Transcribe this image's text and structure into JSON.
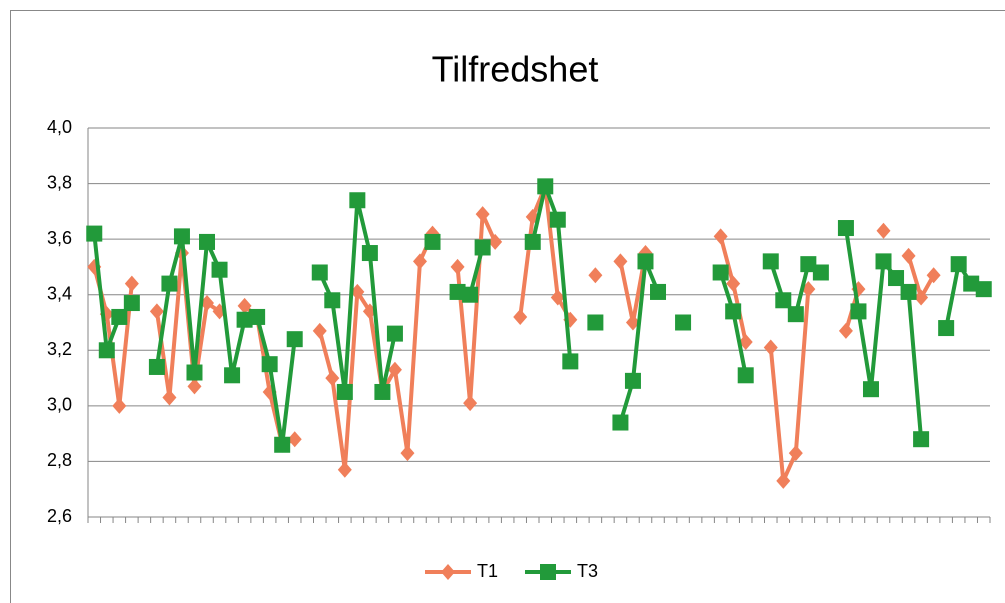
{
  "chart_data": {
    "type": "line",
    "title": "Tilfredshet",
    "categories": [
      null,
      null,
      null,
      null,
      null,
      null,
      null,
      null,
      null,
      null,
      null,
      null,
      null,
      null,
      null,
      null,
      null,
      null,
      null,
      null,
      null,
      null,
      null,
      null,
      null,
      null,
      null,
      null,
      null,
      null,
      null,
      null,
      null,
      null,
      null,
      null,
      null,
      null,
      null,
      null,
      null,
      null,
      null,
      null,
      null,
      null,
      null,
      null,
      null,
      null,
      null,
      null,
      null,
      null,
      null,
      null,
      null,
      null,
      null,
      null,
      null,
      null,
      null,
      null,
      null,
      null,
      null,
      null,
      null,
      null,
      null,
      null
    ],
    "series": [
      {
        "name": "T1",
        "color": "#f07f5a",
        "marker": "diamond",
        "values": [
          3.5,
          3.33,
          3.0,
          3.44,
          null,
          3.34,
          3.03,
          3.55,
          3.07,
          3.37,
          3.34,
          null,
          3.36,
          3.32,
          3.05,
          2.86,
          2.88,
          null,
          3.27,
          3.1,
          2.77,
          3.41,
          3.34,
          3.05,
          3.13,
          2.83,
          3.52,
          3.62,
          null,
          3.5,
          3.01,
          3.69,
          3.59,
          null,
          3.32,
          3.68,
          3.79,
          3.39,
          3.31,
          null,
          3.47,
          null,
          3.52,
          3.3,
          3.55,
          null,
          null,
          null,
          null,
          null,
          3.61,
          3.44,
          3.23,
          null,
          3.21,
          2.73,
          2.83,
          3.42,
          null,
          null,
          3.27,
          3.42,
          null,
          3.63,
          null,
          3.54,
          3.39,
          3.47,
          null,
          null,
          null,
          null
        ]
      },
      {
        "name": "T3",
        "color": "#229a3a",
        "marker": "square",
        "values": [
          3.62,
          3.2,
          3.32,
          3.37,
          null,
          3.14,
          3.44,
          3.61,
          3.12,
          3.59,
          3.49,
          3.11,
          3.31,
          3.32,
          3.15,
          2.86,
          3.24,
          null,
          3.48,
          3.38,
          3.05,
          3.74,
          3.55,
          3.05,
          3.26,
          null,
          null,
          3.59,
          null,
          3.41,
          3.4,
          3.57,
          null,
          null,
          null,
          3.59,
          3.79,
          3.67,
          3.16,
          null,
          3.3,
          null,
          2.94,
          3.09,
          3.52,
          3.41,
          null,
          3.3,
          null,
          null,
          3.48,
          3.34,
          3.11,
          null,
          3.52,
          3.38,
          3.33,
          3.51,
          3.48,
          null,
          3.64,
          3.34,
          3.06,
          3.52,
          3.46,
          3.41,
          2.88,
          null,
          3.28,
          3.51,
          3.44,
          3.42
        ]
      }
    ],
    "ylim": [
      2.6,
      4.0
    ],
    "yticks": [
      {
        "value": 2.6,
        "label": "2,6"
      },
      {
        "value": 2.8,
        "label": "2,8"
      },
      {
        "value": 3.0,
        "label": "3,0"
      },
      {
        "value": 3.2,
        "label": "3,2"
      },
      {
        "value": 3.4,
        "label": "3,4"
      },
      {
        "value": 3.6,
        "label": "3,6"
      },
      {
        "value": 3.8,
        "label": "3,8"
      },
      {
        "value": 4.0,
        "label": "4,0"
      }
    ],
    "grid": true,
    "legend": "bottom"
  }
}
